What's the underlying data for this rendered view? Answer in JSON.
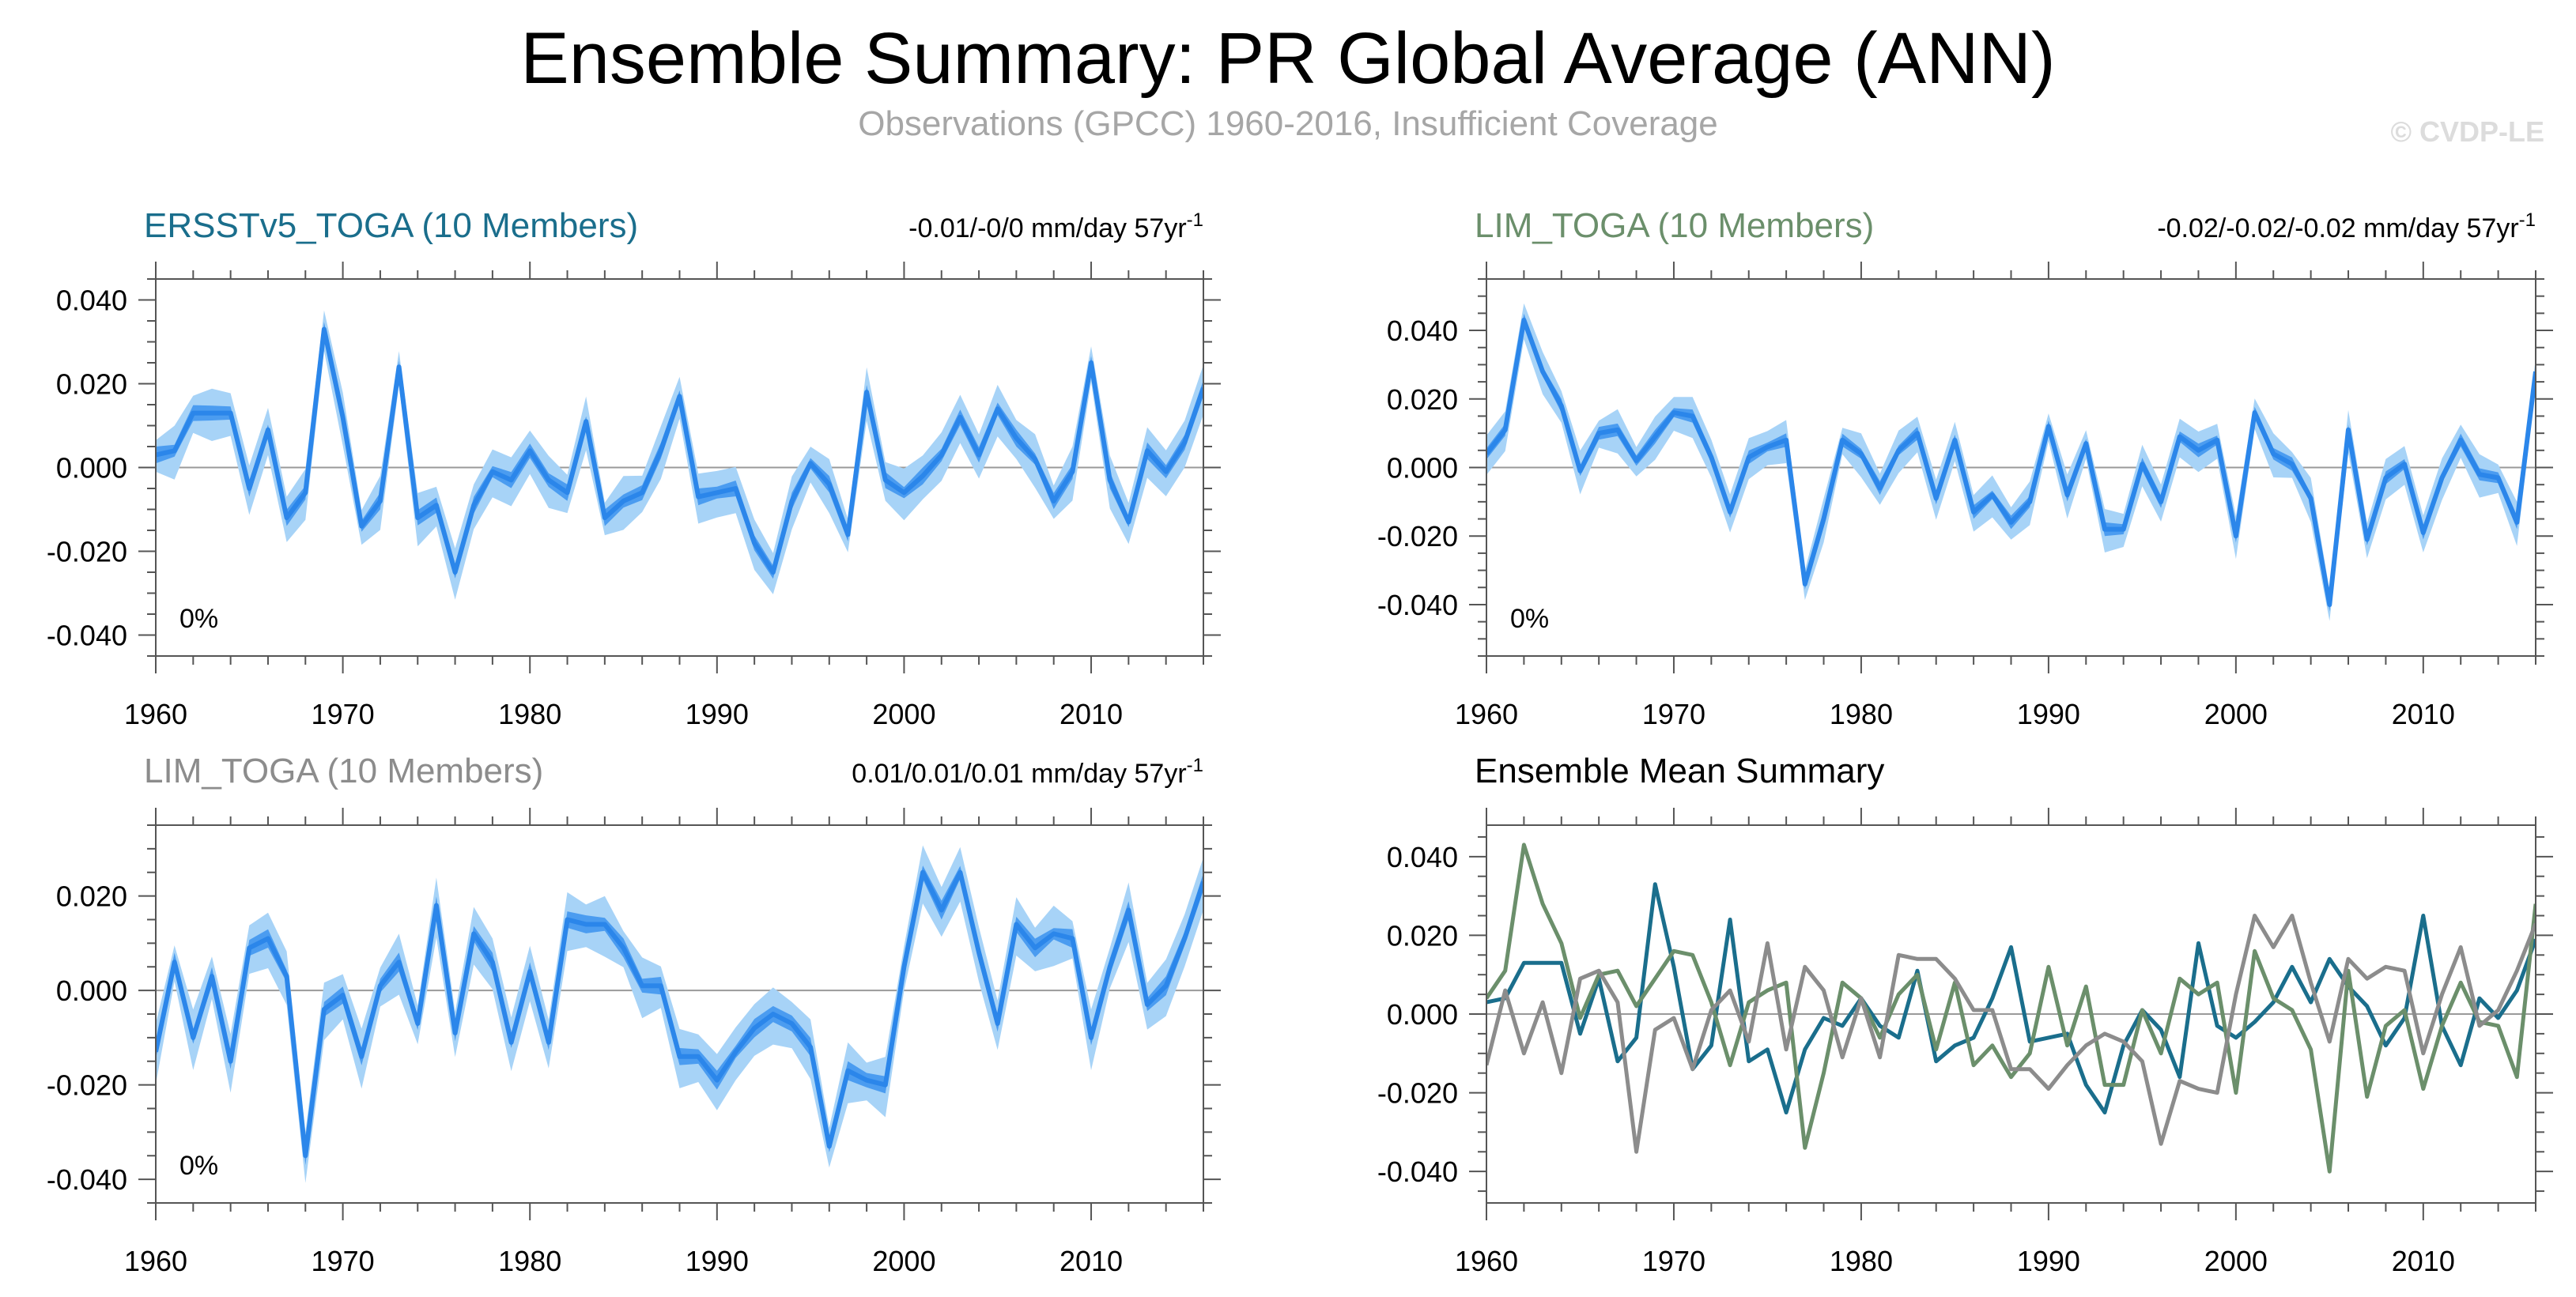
{
  "title": "Ensemble Summary: PR Global Average (ANN)",
  "subtitle": "Observations (GPCC) 1960-2016, Insufficient Coverage",
  "watermark": "© CVDP-LE",
  "colors": {
    "teal": "#1a6e8c",
    "sage": "#6b8f6b",
    "gray": "#8c8c8c",
    "band_outer": "#a7d3f7",
    "band_inner": "#4b9cf0",
    "mean_line": "#2b86ea"
  },
  "chart_data": [
    {
      "type": "area",
      "title": "ERSSTv5_TOGA (10 Members)",
      "title_color": "#1a6e8c",
      "trend_label": "-0.01/-0/0 mm/day 57yr",
      "trend_sup": "-1",
      "pct_label": "0%",
      "x": [
        1960,
        1961,
        1962,
        1963,
        1964,
        1965,
        1966,
        1967,
        1968,
        1969,
        1970,
        1971,
        1972,
        1973,
        1974,
        1975,
        1976,
        1977,
        1978,
        1979,
        1980,
        1981,
        1982,
        1983,
        1984,
        1985,
        1986,
        1987,
        1988,
        1989,
        1990,
        1991,
        1992,
        1993,
        1994,
        1995,
        1996,
        1997,
        1998,
        1999,
        2000,
        2001,
        2002,
        2003,
        2004,
        2005,
        2006,
        2007,
        2008,
        2009,
        2010,
        2011,
        2012,
        2013,
        2014,
        2015,
        2016
      ],
      "values": [
        0.003,
        0.004,
        0.013,
        0.013,
        0.013,
        -0.005,
        0.009,
        -0.012,
        -0.006,
        0.033,
        0.012,
        -0.014,
        -0.008,
        0.024,
        -0.012,
        -0.009,
        -0.025,
        -0.009,
        -0.001,
        -0.003,
        0.004,
        -0.003,
        -0.006,
        0.011,
        -0.012,
        -0.008,
        -0.006,
        0.004,
        0.017,
        -0.007,
        -0.006,
        -0.005,
        -0.018,
        -0.025,
        -0.008,
        0.001,
        -0.004,
        -0.016,
        0.018,
        -0.003,
        -0.006,
        -0.002,
        0.003,
        0.012,
        0.003,
        0.014,
        0.007,
        0.002,
        -0.008,
        -0.001,
        0.025,
        -0.003,
        -0.013,
        0.004,
        -0.001,
        0.006,
        0.019
      ],
      "xlim": [
        1960,
        2016
      ],
      "ylim": [
        -0.045,
        0.045
      ],
      "yticks": [
        -0.04,
        -0.02,
        0,
        0.02,
        0.04
      ],
      "ytick_labels": [
        "-0.040",
        "-0.020",
        "0.000",
        "0.020",
        "0.040"
      ],
      "xticks": [
        1960,
        1970,
        1980,
        1990,
        2000,
        2010
      ],
      "xtick_labels": [
        "1960",
        "1970",
        "1980",
        "1990",
        "2000",
        "2010"
      ]
    },
    {
      "type": "area",
      "title": "LIM_TOGA (10 Members)",
      "title_color": "#6b8f6b",
      "trend_label": "-0.02/-0.02/-0.02 mm/day 57yr",
      "trend_sup": "-1",
      "pct_label": "0%",
      "x": [
        1960,
        1961,
        1962,
        1963,
        1964,
        1965,
        1966,
        1967,
        1968,
        1969,
        1970,
        1971,
        1972,
        1973,
        1974,
        1975,
        1976,
        1977,
        1978,
        1979,
        1980,
        1981,
        1982,
        1983,
        1984,
        1985,
        1986,
        1987,
        1988,
        1989,
        1990,
        1991,
        1992,
        1993,
        1994,
        1995,
        1996,
        1997,
        1998,
        1999,
        2000,
        2001,
        2002,
        2003,
        2004,
        2005,
        2006,
        2007,
        2008,
        2009,
        2010,
        2011,
        2012,
        2013,
        2014,
        2015,
        2016
      ],
      "values": [
        0.004,
        0.011,
        0.043,
        0.028,
        0.018,
        -0.001,
        0.01,
        0.011,
        0.002,
        0.009,
        0.016,
        0.015,
        0.003,
        -0.013,
        0.003,
        0.006,
        0.008,
        -0.034,
        -0.015,
        0.008,
        0.004,
        -0.006,
        0.005,
        0.01,
        -0.009,
        0.008,
        -0.013,
        -0.008,
        -0.016,
        -0.01,
        0.012,
        -0.008,
        0.007,
        -0.018,
        -0.018,
        0.001,
        -0.01,
        0.009,
        0.005,
        0.008,
        -0.02,
        0.016,
        0.004,
        0.001,
        -0.009,
        -0.04,
        0.011,
        -0.021,
        -0.003,
        0.001,
        -0.019,
        -0.003,
        0.008,
        -0.002,
        -0.003,
        -0.016,
        0.028
      ],
      "xlim": [
        1960,
        2016
      ],
      "ylim": [
        -0.055,
        0.055
      ],
      "yticks": [
        -0.04,
        -0.02,
        0,
        0.02,
        0.04
      ],
      "ytick_labels": [
        "-0.040",
        "-0.020",
        "0.000",
        "0.020",
        "0.040"
      ],
      "xticks": [
        1960,
        1970,
        1980,
        1990,
        2000,
        2010
      ],
      "xtick_labels": [
        "1960",
        "1970",
        "1980",
        "1990",
        "2000",
        "2010"
      ]
    },
    {
      "type": "area",
      "title": "LIM_TOGA (10 Members)",
      "title_color": "#8c8c8c",
      "trend_label": "0.01/0.01/0.01 mm/day 57yr",
      "trend_sup": "-1",
      "pct_label": "0%",
      "x": [
        1960,
        1961,
        1962,
        1963,
        1964,
        1965,
        1966,
        1967,
        1968,
        1969,
        1970,
        1971,
        1972,
        1973,
        1974,
        1975,
        1976,
        1977,
        1978,
        1979,
        1980,
        1981,
        1982,
        1983,
        1984,
        1985,
        1986,
        1987,
        1988,
        1989,
        1990,
        1991,
        1992,
        1993,
        1994,
        1995,
        1996,
        1997,
        1998,
        1999,
        2000,
        2001,
        2002,
        2003,
        2004,
        2005,
        2006,
        2007,
        2008,
        2009,
        2010,
        2011,
        2012,
        2013,
        2014,
        2015,
        2016
      ],
      "values": [
        -0.013,
        0.006,
        -0.01,
        0.003,
        -0.015,
        0.009,
        0.011,
        0.003,
        -0.035,
        -0.004,
        -0.001,
        -0.014,
        0.001,
        0.006,
        -0.007,
        0.018,
        -0.009,
        0.012,
        0.006,
        -0.011,
        0.004,
        -0.011,
        0.015,
        0.014,
        0.014,
        0.009,
        0.001,
        0.001,
        -0.014,
        -0.014,
        -0.019,
        -0.013,
        -0.008,
        -0.005,
        -0.007,
        -0.012,
        -0.033,
        -0.017,
        -0.019,
        -0.02,
        0.005,
        0.025,
        0.017,
        0.025,
        0.008,
        -0.007,
        0.014,
        0.009,
        0.012,
        0.011,
        -0.01,
        0.005,
        0.017,
        -0.003,
        0.001,
        0.011,
        0.023
      ],
      "xlim": [
        1960,
        2016
      ],
      "ylim": [
        -0.045,
        0.035
      ],
      "yticks": [
        -0.04,
        -0.02,
        0,
        0.02
      ],
      "ytick_labels": [
        "-0.040",
        "-0.020",
        "0.000",
        "0.020"
      ],
      "xticks": [
        1960,
        1970,
        1980,
        1990,
        2000,
        2010
      ],
      "xtick_labels": [
        "1960",
        "1970",
        "1980",
        "1990",
        "2000",
        "2010"
      ]
    },
    {
      "type": "line",
      "title": "Ensemble Mean Summary",
      "title_color": "#000000",
      "x": [
        1960,
        1961,
        1962,
        1963,
        1964,
        1965,
        1966,
        1967,
        1968,
        1969,
        1970,
        1971,
        1972,
        1973,
        1974,
        1975,
        1976,
        1977,
        1978,
        1979,
        1980,
        1981,
        1982,
        1983,
        1984,
        1985,
        1986,
        1987,
        1988,
        1989,
        1990,
        1991,
        1992,
        1993,
        1994,
        1995,
        1996,
        1997,
        1998,
        1999,
        2000,
        2001,
        2002,
        2003,
        2004,
        2005,
        2006,
        2007,
        2008,
        2009,
        2010,
        2011,
        2012,
        2013,
        2014,
        2015,
        2016
      ],
      "series": [
        {
          "name": "ERSSTv5_TOGA",
          "color": "#1a6e8c",
          "values": [
            0.003,
            0.004,
            0.013,
            0.013,
            0.013,
            -0.005,
            0.009,
            -0.012,
            -0.006,
            0.033,
            0.012,
            -0.014,
            -0.008,
            0.024,
            -0.012,
            -0.009,
            -0.025,
            -0.009,
            -0.001,
            -0.003,
            0.004,
            -0.003,
            -0.006,
            0.011,
            -0.012,
            -0.008,
            -0.006,
            0.004,
            0.017,
            -0.007,
            -0.006,
            -0.005,
            -0.018,
            -0.025,
            -0.008,
            0.001,
            -0.004,
            -0.016,
            0.018,
            -0.003,
            -0.006,
            -0.002,
            0.003,
            0.012,
            0.003,
            0.014,
            0.007,
            0.002,
            -0.008,
            -0.001,
            0.025,
            -0.003,
            -0.013,
            0.004,
            -0.001,
            0.006,
            0.019
          ]
        },
        {
          "name": "LIM_TOGA",
          "color": "#6b8f6b",
          "values": [
            0.004,
            0.011,
            0.043,
            0.028,
            0.018,
            -0.001,
            0.01,
            0.011,
            0.002,
            0.009,
            0.016,
            0.015,
            0.003,
            -0.013,
            0.003,
            0.006,
            0.008,
            -0.034,
            -0.015,
            0.008,
            0.004,
            -0.006,
            0.005,
            0.01,
            -0.009,
            0.008,
            -0.013,
            -0.008,
            -0.016,
            -0.01,
            0.012,
            -0.008,
            0.007,
            -0.018,
            -0.018,
            0.001,
            -0.01,
            0.009,
            0.005,
            0.008,
            -0.02,
            0.016,
            0.004,
            0.001,
            -0.009,
            -0.04,
            0.011,
            -0.021,
            -0.003,
            0.001,
            -0.019,
            -0.003,
            0.008,
            -0.002,
            -0.003,
            -0.016,
            0.028
          ]
        },
        {
          "name": "LIM_TOGA",
          "color": "#8c8c8c",
          "values": [
            -0.013,
            0.006,
            -0.01,
            0.003,
            -0.015,
            0.009,
            0.011,
            0.003,
            -0.035,
            -0.004,
            -0.001,
            -0.014,
            0.001,
            0.006,
            -0.007,
            0.018,
            -0.009,
            0.012,
            0.006,
            -0.011,
            0.004,
            -0.011,
            0.015,
            0.014,
            0.014,
            0.009,
            0.001,
            0.001,
            -0.014,
            -0.014,
            -0.019,
            -0.013,
            -0.008,
            -0.005,
            -0.007,
            -0.012,
            -0.033,
            -0.017,
            -0.019,
            -0.02,
            0.005,
            0.025,
            0.017,
            0.025,
            0.008,
            -0.007,
            0.014,
            0.009,
            0.012,
            0.011,
            -0.01,
            0.005,
            0.017,
            -0.003,
            0.001,
            0.011,
            0.023
          ]
        }
      ],
      "xlim": [
        1960,
        2016
      ],
      "ylim": [
        -0.048,
        0.048
      ],
      "yticks": [
        -0.04,
        -0.02,
        0,
        0.02,
        0.04
      ],
      "ytick_labels": [
        "-0.040",
        "-0.020",
        "0.000",
        "0.020",
        "0.040"
      ],
      "xticks": [
        1960,
        1970,
        1980,
        1990,
        2000,
        2010
      ],
      "xtick_labels": [
        "1960",
        "1970",
        "1980",
        "1990",
        "2000",
        "2010"
      ]
    }
  ]
}
